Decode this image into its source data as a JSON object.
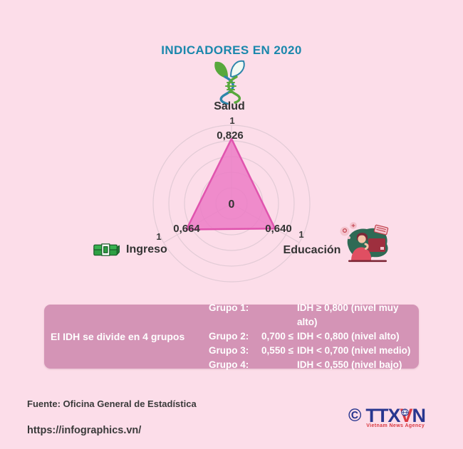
{
  "chart_data": {
    "type": "radar",
    "title": "INDICADORES EN 2020",
    "axes": [
      {
        "label": "Salud",
        "value": 0.826,
        "value_label": "0,826"
      },
      {
        "label": "Educación",
        "value": 0.64,
        "value_label": "0,640"
      },
      {
        "label": "Ingreso",
        "value": 0.664,
        "value_label": "0,664"
      }
    ],
    "scale": {
      "min": 0,
      "max": 1,
      "min_label": "0",
      "max_label": "1",
      "rings": 5
    },
    "grid": true,
    "legend_position": "none",
    "fill_color": "#ec7dc5",
    "stroke_color": "#e054ae",
    "grid_color": "#e2cbd6"
  },
  "legend_box": {
    "intro": "El IDH se divide en 4 grupos",
    "groups": [
      {
        "name": "Grupo 1:",
        "bound": "",
        "rule": "IDH ≥ 0,800 (nivel muy alto)"
      },
      {
        "name": "Grupo 2:",
        "bound": "0,700 ≤",
        "rule": "IDH < 0,800 (nivel alto)"
      },
      {
        "name": "Grupo 3:",
        "bound": "0,550 ≤",
        "rule": "IDH < 0,700 (nivel medio)"
      },
      {
        "name": "Grupo 4:",
        "bound": "",
        "rule": "IDH < 0,550 (nivel bajo)"
      }
    ]
  },
  "footer": {
    "source": "Fuente: Oficina General de Estadística",
    "url": "https://infographics.vn/"
  },
  "logo": {
    "copyright": "©",
    "letters": [
      "T",
      "T",
      "X",
      "V",
      "N"
    ],
    "tagline": "Vietnam News Agency"
  },
  "colors": {
    "background": "#fcdde9",
    "title": "#1a87ac",
    "text": "#333333",
    "legend_bg": "#d494b6",
    "legend_text": "#ffffff",
    "logo_navy": "#28368f",
    "logo_red": "#d93a41"
  }
}
